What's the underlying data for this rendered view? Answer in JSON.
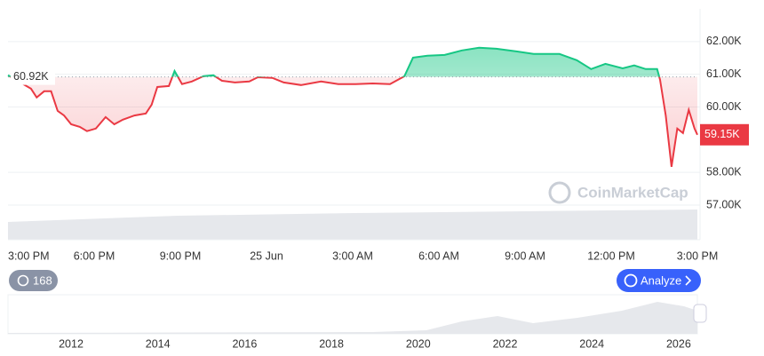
{
  "chart_data": {
    "type": "line",
    "x": [
      0,
      0.8,
      1.0,
      1.26,
      1.5,
      1.73,
      1.95,
      2.2,
      2.5,
      2.75,
      3.06,
      3.4,
      3.7,
      4.0,
      4.4,
      4.8,
      5.0,
      5.2,
      5.6,
      5.8,
      6.06,
      6.4,
      6.8,
      7.15,
      7.45,
      7.9,
      8.4,
      8.7,
      9.2,
      9.6,
      10.2,
      10.9,
      11.5,
      12.1,
      12.7,
      13.3,
      13.8,
      14.1,
      14.6,
      15.2,
      15.8,
      16.4,
      17.0,
      17.7,
      18.3,
      19.2,
      19.8,
      20.3,
      20.8,
      21.4,
      21.8,
      22.2,
      22.6,
      22.7,
      22.9,
      23.1,
      23.3,
      23.5,
      23.7,
      23.9,
      24
    ],
    "values": [
      60970,
      60560,
      60290,
      60480,
      60480,
      59880,
      59740,
      59470,
      59390,
      59260,
      59340,
      59690,
      59470,
      59610,
      59740,
      59800,
      60070,
      60610,
      60640,
      61100,
      60700,
      60780,
      60940,
      60970,
      60800,
      60750,
      60780,
      60910,
      60890,
      60750,
      60670,
      60780,
      60700,
      60700,
      60720,
      60700,
      60940,
      61510,
      61570,
      61590,
      61730,
      61810,
      61780,
      61700,
      61620,
      61620,
      61430,
      61160,
      61320,
      61180,
      61270,
      61160,
      61160,
      60830,
      59740,
      58170,
      59340,
      59200,
      59910,
      59340,
      59150
    ],
    "colors": {
      "up": "#16c784",
      "down": "#ea3943"
    },
    "baseline": {
      "value": 60920,
      "label": "60.92K"
    },
    "last_price": {
      "value": 59150,
      "label": "59.15K"
    },
    "xlim": [
      0,
      24
    ],
    "xticks": [
      {
        "value": 0,
        "label": "3:00 PM"
      },
      {
        "value": 3,
        "label": "6:00 PM"
      },
      {
        "value": 6,
        "label": "9:00 PM"
      },
      {
        "value": 9,
        "label": "25 Jun"
      },
      {
        "value": 12,
        "label": "3:00 AM"
      },
      {
        "value": 15,
        "label": "6:00 AM"
      },
      {
        "value": 18,
        "label": "9:00 AM"
      },
      {
        "value": 21,
        "label": "12:00 PM"
      },
      {
        "value": 24,
        "label": "3:00 PM"
      }
    ],
    "ylim": [
      55940,
      63000
    ],
    "yticks": [
      {
        "value": 57000,
        "label": "57.00K"
      },
      {
        "value": 58000,
        "label": "58.00K"
      },
      {
        "value": 60000,
        "label": "60.00K"
      },
      {
        "value": 61000,
        "label": "61.00K"
      },
      {
        "value": 62000,
        "label": "62.00K"
      }
    ],
    "grid": true,
    "watermark": "CoinMarketCap"
  },
  "controls": {
    "history_badge": "168",
    "analyze_button": "Analyze"
  },
  "navigator": {
    "years": [
      "2012",
      "2014",
      "2016",
      "2018",
      "2020",
      "2022",
      "2024",
      "2026"
    ]
  }
}
